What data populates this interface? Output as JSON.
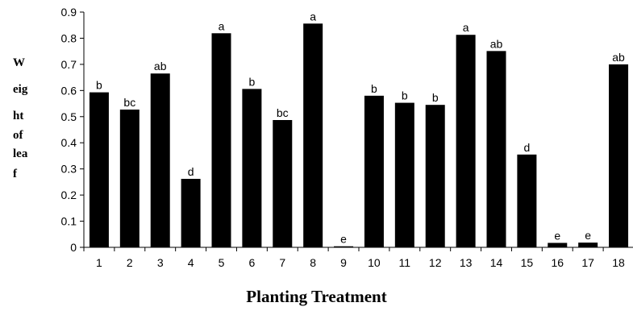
{
  "chart_data": {
    "type": "bar",
    "title": "",
    "xlabel": "Planting Treatment",
    "ylabel_lines": [
      "W",
      "eig",
      "ht",
      "of",
      "lea",
      "f"
    ],
    "ylim": [
      0,
      0.9
    ],
    "yticks": [
      "0",
      "0.1",
      "0.2",
      "0.3",
      "0.4",
      "0.5",
      "0.6",
      "0.7",
      "0.8",
      "0.9"
    ],
    "categories": [
      "1",
      "2",
      "3",
      "4",
      "5",
      "6",
      "7",
      "8",
      "9",
      "10",
      "11",
      "12",
      "13",
      "14",
      "15",
      "16",
      "17",
      "18"
    ],
    "values": [
      0.593,
      0.527,
      0.665,
      0.262,
      0.819,
      0.606,
      0.487,
      0.856,
      0.004,
      0.58,
      0.553,
      0.545,
      0.813,
      0.751,
      0.355,
      0.017,
      0.018,
      0.7
    ],
    "letters": [
      "b",
      "bc",
      "ab",
      "d",
      "a",
      "b",
      "bc",
      "a",
      "e",
      "b",
      "b",
      "b",
      "a",
      "ab",
      "d",
      "e",
      "e",
      "ab"
    ],
    "bar_color": "#000000",
    "grid": false,
    "legend": "none"
  }
}
